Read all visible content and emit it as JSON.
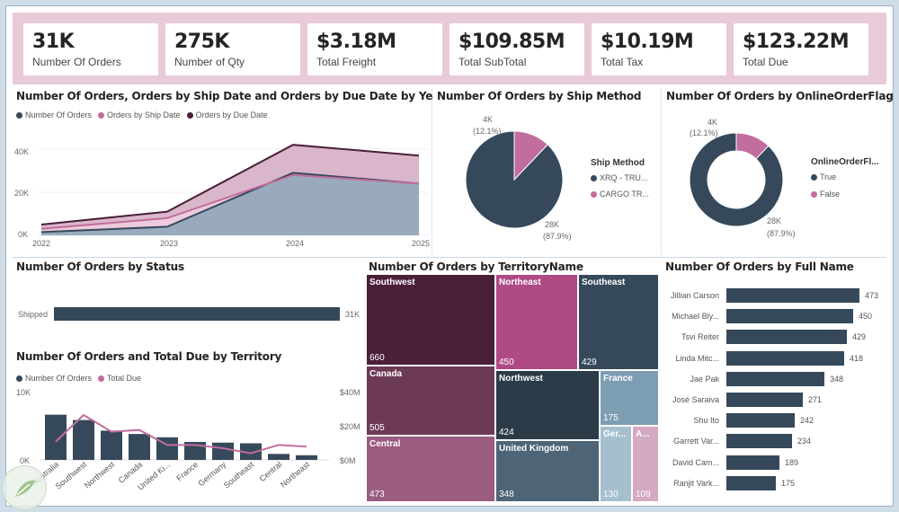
{
  "kpis": [
    {
      "value": "31K",
      "label": "Number Of Orders"
    },
    {
      "value": "275K",
      "label": "Number of Qty"
    },
    {
      "value": "$3.18M",
      "label": "Total Freight"
    },
    {
      "value": "$109.85M",
      "label": "Total SubTotal"
    },
    {
      "value": "$10.19M",
      "label": "Total Tax"
    },
    {
      "value": "$123.22M",
      "label": "Total Due"
    }
  ],
  "colors": {
    "navy": "#35495a",
    "pink": "#c16d9e",
    "plum": "#4a2039",
    "mauve": "#8a4f6e",
    "lightpink": "#f0cfe0",
    "grayblue": "#8aa5b8",
    "lightmauve": "#d4a9c2"
  },
  "area_chart": {
    "title": "Number Of Orders, Orders by Ship Date and Orders by Due Date by Year",
    "legend": [
      "Number Of Orders",
      "Orders by Ship Date",
      "Orders by Due Date"
    ],
    "y_ticks": [
      "40K",
      "20K",
      "0K"
    ],
    "x_ticks": [
      "2022",
      "2023",
      "2024",
      "2025"
    ]
  },
  "ship_method": {
    "title": "Number Of Orders by Ship Method",
    "legend_title": "Ship Method",
    "legend": [
      "XRQ - TRU...",
      "CARGO TR..."
    ],
    "small_label": [
      "4K",
      "(12.1%)"
    ],
    "big_label": [
      "28K",
      "(87.9%)"
    ]
  },
  "online_flag": {
    "title": "Number Of Orders by OnlineOrderFlag",
    "legend_title": "OnlineOrderFl...",
    "legend": [
      "True",
      "False"
    ],
    "small_label": [
      "4K",
      "(12.1%)"
    ],
    "big_label": [
      "28K",
      "(87.9%)"
    ]
  },
  "status": {
    "title": "Number Of Orders by Status",
    "category": "Shipped",
    "value_label": "31K"
  },
  "territory_combo": {
    "title": "Number Of Orders and Total Due by Territory",
    "legend": [
      "Number Of Orders",
      "Total Due"
    ],
    "y_left": [
      "10K",
      "0K"
    ],
    "y_right": [
      "$40M",
      "$20M",
      "$0M"
    ]
  },
  "treemap": {
    "title": "Number Of Orders by TerritoryName",
    "cells": [
      {
        "name": "Southwest",
        "value": "660"
      },
      {
        "name": "Northeast",
        "value": "450"
      },
      {
        "name": "Southeast",
        "value": "429"
      },
      {
        "name": "Canada",
        "value": "505"
      },
      {
        "name": "Northwest",
        "value": "424"
      },
      {
        "name": "France",
        "value": "175"
      },
      {
        "name": "Central",
        "value": "473"
      },
      {
        "name": "United Kingdom",
        "value": "348"
      },
      {
        "name": "Ger...",
        "value": "130"
      },
      {
        "name": "A...",
        "value": "109"
      }
    ]
  },
  "full_name": {
    "title": "Number Of Orders by Full Name"
  },
  "chart_data": [
    {
      "type": "area",
      "title": "Number Of Orders, Orders by Ship Date and Orders by Due Date by Year",
      "x": [
        "2022",
        "2023",
        "2024",
        "2025"
      ],
      "ylim": [
        0,
        45000
      ],
      "series": [
        {
          "name": "Number Of Orders",
          "values": [
            1500,
            4000,
            29000,
            24000
          ]
        },
        {
          "name": "Orders by Ship Date",
          "values": [
            3000,
            8000,
            28000,
            24000
          ]
        },
        {
          "name": "Orders by Due Date",
          "values": [
            5000,
            11000,
            42000,
            37000
          ]
        }
      ]
    },
    {
      "type": "pie",
      "title": "Number Of Orders by Ship Method",
      "categories": [
        "XRQ - TRU...",
        "CARGO TR..."
      ],
      "values": [
        87.9,
        12.1
      ]
    },
    {
      "type": "pie",
      "title": "Number Of Orders by OnlineOrderFlag",
      "categories": [
        "True",
        "False"
      ],
      "values": [
        87.9,
        12.1
      ]
    },
    {
      "type": "bar",
      "title": "Number Of Orders by Status",
      "categories": [
        "Shipped"
      ],
      "values": [
        31000
      ]
    },
    {
      "type": "bar",
      "title": "Number Of Orders and Total Due by Territory",
      "categories": [
        "Australia",
        "Southwest",
        "Northwest",
        "Canada",
        "United Ki...",
        "France",
        "Germany",
        "Southeast",
        "Central",
        "Northeast"
      ],
      "ylim": [
        0,
        10000
      ],
      "series": [
        {
          "name": "Number Of Orders",
          "values": [
            6800,
            6000,
            4400,
            3900,
            3400,
            2700,
            2600,
            2500,
            900,
            700
          ]
        },
        {
          "name": "Total Due",
          "values": [
            11000000,
            27000000,
            17000000,
            18000000,
            9000000,
            9000000,
            7000000,
            4000000,
            9000000,
            8000000
          ]
        }
      ]
    },
    {
      "type": "bar",
      "title": "Number Of Orders by Full Name",
      "categories": [
        "Jillian Carson",
        "Michael Bly...",
        "Tsvi Reiter",
        "Linda Mitc...",
        "Jae Pak",
        "José Saraiva",
        "Shu Ito",
        "Garrett Var...",
        "David Cam...",
        "Ranjit Vark..."
      ],
      "values": [
        473,
        450,
        429,
        418,
        348,
        271,
        242,
        234,
        189,
        175
      ]
    }
  ]
}
